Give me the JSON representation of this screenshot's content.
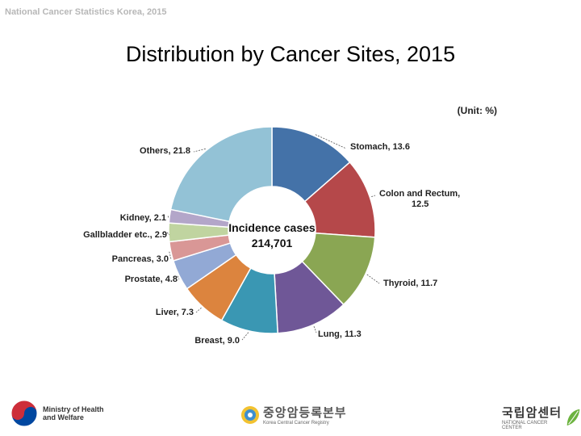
{
  "header": {
    "note": "National Cancer Statistics Korea, 2015"
  },
  "slide": {
    "title": "Distribution by Cancer Sites, 2015"
  },
  "chart_data": {
    "type": "pie",
    "title": "Distribution by Cancer Sites, 2015",
    "unit_label": "(Unit: %)",
    "center_label": "Incidence cases",
    "center_value": "214,701",
    "slices": [
      {
        "name": "Stomach",
        "value": 13.6,
        "label": "Stomach, 13.6",
        "color": "#4472a8"
      },
      {
        "name": "Colon and Rectum",
        "value": 12.5,
        "label": "Colon and Rectum, 12.5",
        "color": "#b5484a"
      },
      {
        "name": "Thyroid",
        "value": 11.7,
        "label": "Thyroid, 11.7",
        "color": "#8aa653"
      },
      {
        "name": "Lung",
        "value": 11.3,
        "label": "Lung, 11.3",
        "color": "#6f5797"
      },
      {
        "name": "Breast",
        "value": 9.0,
        "label": "Breast, 9.0",
        "color": "#3a97b3"
      },
      {
        "name": "Liver",
        "value": 7.3,
        "label": "Liver, 7.3",
        "color": "#dc843e"
      },
      {
        "name": "Prostate",
        "value": 4.8,
        "label": "Prostate, 4.8",
        "color": "#92a9d5"
      },
      {
        "name": "Pancreas",
        "value": 3.0,
        "label": "Pancreas, 3.0",
        "color": "#d99796"
      },
      {
        "name": "Gallbladder etc.",
        "value": 2.9,
        "label": "Gallbladder etc., 2.9",
        "color": "#c0d4a0"
      },
      {
        "name": "Kidney",
        "value": 2.1,
        "label": "Kidney, 2.1",
        "color": "#b3a6c9"
      },
      {
        "name": "Others",
        "value": 21.8,
        "label": "Others, 21.8",
        "color": "#93c2d6"
      }
    ]
  },
  "footer": {
    "ministry": {
      "line1": "Ministry of Health",
      "line2": "and Welfare",
      "icon": "taegeuk-emblem-icon"
    },
    "registry": {
      "korean": "중앙암등록본부",
      "english": "Korea Central Cancer Registry",
      "icon": "registry-logo-icon"
    },
    "center": {
      "korean": "국립암센터",
      "english": "NATIONAL CANCER CENTER",
      "icon": "cancer-center-leaf-icon"
    }
  }
}
